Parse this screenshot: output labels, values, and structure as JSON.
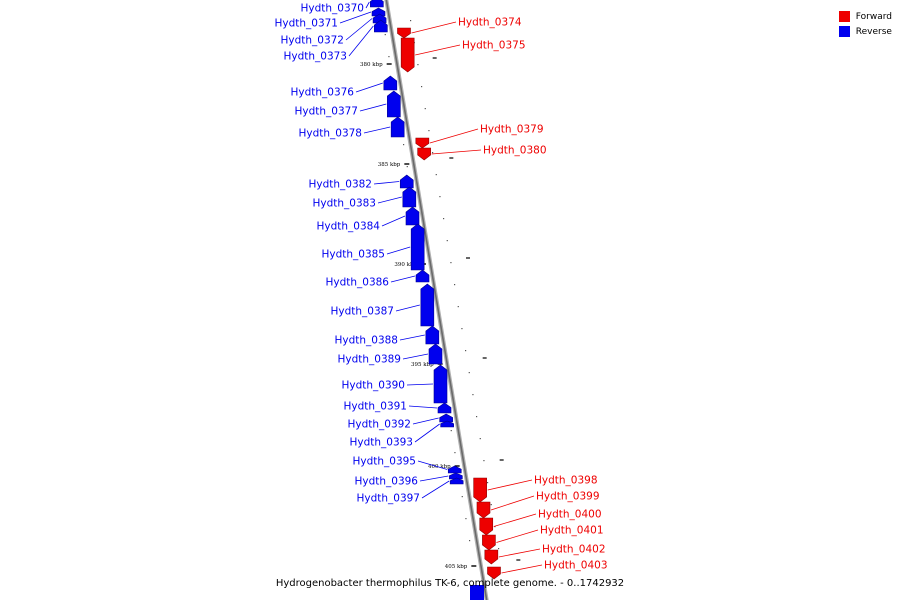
{
  "colors": {
    "forward": "#ee0000",
    "reverse": "#0000ee",
    "backbone": "#808080"
  },
  "legend": {
    "forward": "Forward",
    "reverse": "Reverse"
  },
  "caption": "Hydrogenobacter thermophilus TK-6, complete genome. - 0..1742932",
  "ticks": [
    {
      "label": "380 kbp"
    },
    {
      "label": "385 kbp"
    },
    {
      "label": "390 kbp"
    },
    {
      "label": "395 kbp"
    },
    {
      "label": "400 kbp"
    },
    {
      "label": "405 kbp"
    }
  ],
  "genes": [
    {
      "name": "Hydth_0370",
      "strand": "reverse"
    },
    {
      "name": "Hydth_0371",
      "strand": "reverse"
    },
    {
      "name": "Hydth_0372",
      "strand": "reverse"
    },
    {
      "name": "Hydth_0373",
      "strand": "reverse"
    },
    {
      "name": "Hydth_0374",
      "strand": "forward"
    },
    {
      "name": "Hydth_0375",
      "strand": "forward"
    },
    {
      "name": "Hydth_0376",
      "strand": "reverse"
    },
    {
      "name": "Hydth_0377",
      "strand": "reverse"
    },
    {
      "name": "Hydth_0378",
      "strand": "reverse"
    },
    {
      "name": "Hydth_0379",
      "strand": "forward"
    },
    {
      "name": "Hydth_0380",
      "strand": "forward"
    },
    {
      "name": "Hydth_0382",
      "strand": "reverse"
    },
    {
      "name": "Hydth_0383",
      "strand": "reverse"
    },
    {
      "name": "Hydth_0384",
      "strand": "reverse"
    },
    {
      "name": "Hydth_0385",
      "strand": "reverse"
    },
    {
      "name": "Hydth_0386",
      "strand": "reverse"
    },
    {
      "name": "Hydth_0387",
      "strand": "reverse"
    },
    {
      "name": "Hydth_0388",
      "strand": "reverse"
    },
    {
      "name": "Hydth_0389",
      "strand": "reverse"
    },
    {
      "name": "Hydth_0390",
      "strand": "reverse"
    },
    {
      "name": "Hydth_0391",
      "strand": "reverse"
    },
    {
      "name": "Hydth_0392",
      "strand": "reverse"
    },
    {
      "name": "Hydth_0393",
      "strand": "reverse"
    },
    {
      "name": "Hydth_0395",
      "strand": "reverse"
    },
    {
      "name": "Hydth_0396",
      "strand": "reverse"
    },
    {
      "name": "Hydth_0397",
      "strand": "reverse"
    },
    {
      "name": "Hydth_0398",
      "strand": "forward"
    },
    {
      "name": "Hydth_0399",
      "strand": "forward"
    },
    {
      "name": "Hydth_0400",
      "strand": "forward"
    },
    {
      "name": "Hydth_0401",
      "strand": "forward"
    },
    {
      "name": "Hydth_0402",
      "strand": "forward"
    },
    {
      "name": "Hydth_0403",
      "strand": "forward"
    }
  ]
}
